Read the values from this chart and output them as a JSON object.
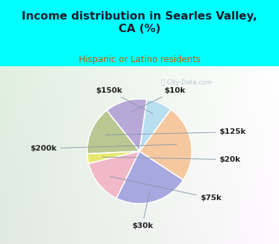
{
  "title": "Income distribution in Searles Valley,\nCA (%)",
  "subtitle": "Hispanic or Latino residents",
  "title_color": "#1a1a2e",
  "subtitle_color": "#cc5500",
  "background_top": "#00ffff",
  "background_chart_left": "#e8f5e9",
  "background_chart_right": "#ffffff",
  "labels": [
    "$10k",
    "$125k",
    "$20k",
    "$75k",
    "$30k",
    "$200k",
    "$150k"
  ],
  "sizes": [
    13,
    15,
    3,
    14,
    23,
    24,
    8
  ],
  "colors": [
    "#b8a8d8",
    "#b8c890",
    "#e8e870",
    "#f0b8c8",
    "#a8a8e0",
    "#f5c8a0",
    "#b8dff0"
  ],
  "startangle": 82,
  "watermark": "City-Data.com"
}
